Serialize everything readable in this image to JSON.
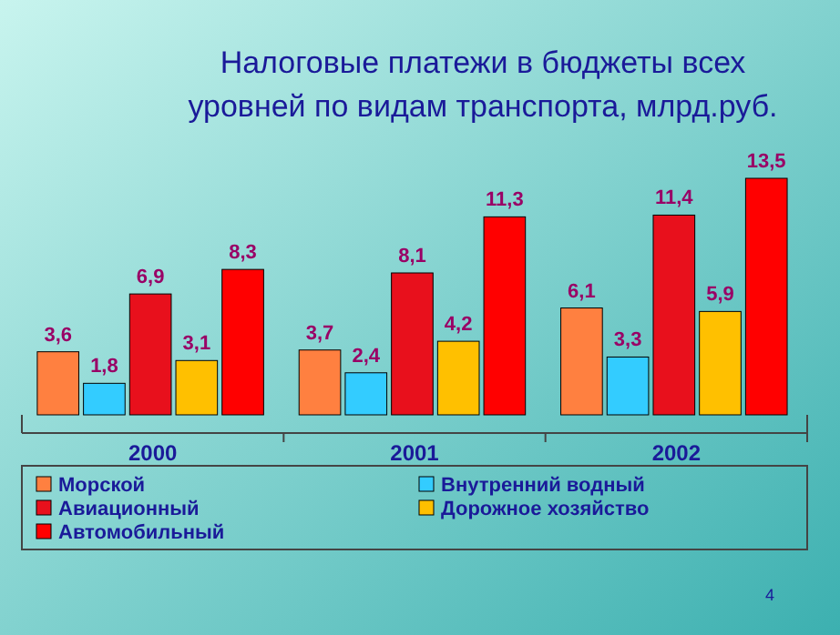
{
  "chart_data": {
    "type": "bar",
    "title": "Налоговые платежи в бюджеты всех\nуровней по видам транспорта, млрд.руб.",
    "categories": [
      "2000",
      "2001",
      "2002"
    ],
    "series": [
      {
        "name": "Морской",
        "color": "#ff8040",
        "values": [
          3.6,
          3.7,
          6.1
        ],
        "value_labels": [
          "3,6",
          "3,7",
          "6,1"
        ]
      },
      {
        "name": "Внутренний водный",
        "color": "#33ccff",
        "values": [
          1.8,
          2.4,
          3.3
        ],
        "value_labels": [
          "1,8",
          "2,4",
          "3,3"
        ]
      },
      {
        "name": "Авиационный",
        "color": "#e8101c",
        "values": [
          6.9,
          8.1,
          11.4
        ],
        "value_labels": [
          "6,9",
          "8,1",
          "11,4"
        ]
      },
      {
        "name": "Дорожное хозяйство",
        "color": "#ffc000",
        "values": [
          3.1,
          4.2,
          5.9
        ],
        "value_labels": [
          "3,1",
          "4,2",
          "5,9"
        ]
      },
      {
        "name": "Автомобильный",
        "color": "#ff0000",
        "values": [
          8.3,
          11.3,
          13.5
        ],
        "value_labels": [
          "8,3",
          "11,3",
          "13,5"
        ]
      }
    ],
    "legend": "bottom",
    "annotations": [
      "4"
    ]
  }
}
